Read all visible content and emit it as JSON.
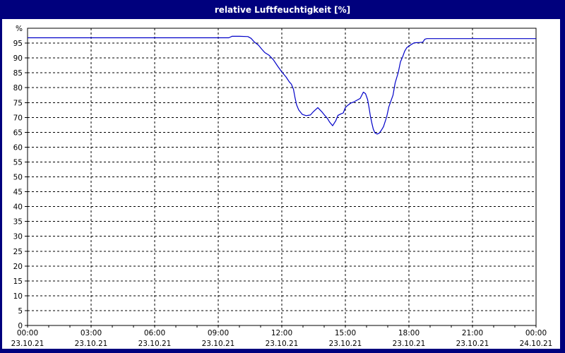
{
  "window": {
    "title": "relative Luftfeuchtigkeit [%]"
  },
  "colors": {
    "window_chrome": "#00007d",
    "plot_background": "#ffffff",
    "grid_color": "#000000",
    "line_color": "#0000c8",
    "title_text": "#ffffff"
  },
  "chart_data": {
    "type": "line",
    "title": "relative Luftfeuchtigkeit [%]",
    "xlabel": "",
    "ylabel": "%",
    "ylim": [
      0,
      100
    ],
    "xlim_hours": [
      0,
      24
    ],
    "grid": "dashed, horizontal every 5%, vertical every 3h",
    "legend": "none",
    "y_ticks": [
      0,
      5,
      10,
      15,
      20,
      25,
      30,
      35,
      40,
      45,
      50,
      55,
      60,
      65,
      70,
      75,
      80,
      85,
      90,
      95
    ],
    "x_minor_step_hours": 1,
    "x_ticks": [
      {
        "hour": 0,
        "time": "00:00",
        "date": "23.10.21"
      },
      {
        "hour": 3,
        "time": "03:00",
        "date": "23.10.21"
      },
      {
        "hour": 6,
        "time": "06:00",
        "date": "23.10.21"
      },
      {
        "hour": 9,
        "time": "09:00",
        "date": "23.10.21"
      },
      {
        "hour": 12,
        "time": "12:00",
        "date": "23.10.21"
      },
      {
        "hour": 15,
        "time": "15:00",
        "date": "23.10.21"
      },
      {
        "hour": 18,
        "time": "18:00",
        "date": "23.10.21"
      },
      {
        "hour": 21,
        "time": "21:00",
        "date": "23.10.21"
      },
      {
        "hour": 24,
        "time": "00:00",
        "date": "24.10.21"
      }
    ],
    "series": [
      {
        "name": "relative Luftfeuchtigkeit [%]",
        "color": "#0000c8",
        "points": [
          [
            0.0,
            96.8
          ],
          [
            1.0,
            96.8
          ],
          [
            2.0,
            96.8
          ],
          [
            3.0,
            96.8
          ],
          [
            4.0,
            96.8
          ],
          [
            5.0,
            96.8
          ],
          [
            6.0,
            96.8
          ],
          [
            7.0,
            96.8
          ],
          [
            8.0,
            96.8
          ],
          [
            9.0,
            96.8
          ],
          [
            9.5,
            96.8
          ],
          [
            9.65,
            97.3
          ],
          [
            10.0,
            97.3
          ],
          [
            10.4,
            97.2
          ],
          [
            10.55,
            96.6
          ],
          [
            10.7,
            95.4
          ],
          [
            10.9,
            94.3
          ],
          [
            11.05,
            93.0
          ],
          [
            11.2,
            91.8
          ],
          [
            11.4,
            90.9
          ],
          [
            11.6,
            89.4
          ],
          [
            11.8,
            87.3
          ],
          [
            12.0,
            85.3
          ],
          [
            12.2,
            83.6
          ],
          [
            12.35,
            82.0
          ],
          [
            12.45,
            81.2
          ],
          [
            12.55,
            79.5
          ],
          [
            12.62,
            76.8
          ],
          [
            12.7,
            74.2
          ],
          [
            12.8,
            72.5
          ],
          [
            12.97,
            71.0
          ],
          [
            13.15,
            70.6
          ],
          [
            13.35,
            70.8
          ],
          [
            13.5,
            72.0
          ],
          [
            13.7,
            73.3
          ],
          [
            13.9,
            71.8
          ],
          [
            14.05,
            70.5
          ],
          [
            14.15,
            69.7
          ],
          [
            14.25,
            68.5
          ],
          [
            14.4,
            67.2
          ],
          [
            14.55,
            68.9
          ],
          [
            14.65,
            70.7
          ],
          [
            14.8,
            71.2
          ],
          [
            14.9,
            71.5
          ],
          [
            15.0,
            73.3
          ],
          [
            15.1,
            74.0
          ],
          [
            15.25,
            74.8
          ],
          [
            15.4,
            75.2
          ],
          [
            15.55,
            75.8
          ],
          [
            15.7,
            76.4
          ],
          [
            15.85,
            78.5
          ],
          [
            15.95,
            78.0
          ],
          [
            16.05,
            76.0
          ],
          [
            16.12,
            73.2
          ],
          [
            16.18,
            70.5
          ],
          [
            16.25,
            68.1
          ],
          [
            16.32,
            66.0
          ],
          [
            16.4,
            64.8
          ],
          [
            16.5,
            64.4
          ],
          [
            16.6,
            64.7
          ],
          [
            16.7,
            65.7
          ],
          [
            16.8,
            66.9
          ],
          [
            16.95,
            70.2
          ],
          [
            17.05,
            73.5
          ],
          [
            17.15,
            75.5
          ],
          [
            17.25,
            77.5
          ],
          [
            17.35,
            81.6
          ],
          [
            17.5,
            85.2
          ],
          [
            17.6,
            88.7
          ],
          [
            17.7,
            90.3
          ],
          [
            17.8,
            92.3
          ],
          [
            17.9,
            93.5
          ],
          [
            18.1,
            94.5
          ],
          [
            18.25,
            95.1
          ],
          [
            18.5,
            95.2
          ],
          [
            18.65,
            95.3
          ],
          [
            18.75,
            96.3
          ],
          [
            18.85,
            96.5
          ],
          [
            19.5,
            96.5
          ],
          [
            20.0,
            96.5
          ],
          [
            21.0,
            96.5
          ],
          [
            22.0,
            96.5
          ],
          [
            23.0,
            96.5
          ],
          [
            24.0,
            96.5
          ]
        ]
      }
    ]
  }
}
